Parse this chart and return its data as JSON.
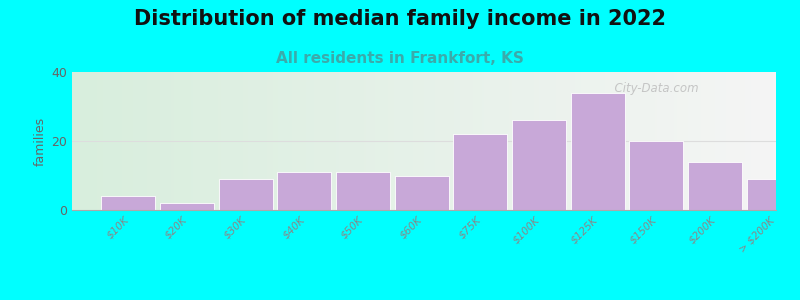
{
  "title": "Distribution of median family income in 2022",
  "subtitle": "All residents in Frankfort, KS",
  "ylabel": "families",
  "categories": [
    "$10K",
    "$20K",
    "$30K",
    "$40K",
    "$50K",
    "$60K",
    "$75K",
    "$100K",
    "$125K",
    "$150K",
    "$200K",
    "> $200K"
  ],
  "left_edges": [
    0,
    1,
    2,
    3,
    4,
    5,
    6,
    7,
    8,
    9,
    10,
    11
  ],
  "widths": [
    1,
    1,
    1,
    1,
    1,
    1,
    1,
    1,
    1,
    1,
    1,
    1
  ],
  "values": [
    4,
    2,
    9,
    11,
    11,
    10,
    22,
    26,
    34,
    20,
    14,
    9
  ],
  "bar_color": "#c8a8d8",
  "bar_edgecolor": "#ffffff",
  "background_color": "#00ffff",
  "ylim": [
    0,
    40
  ],
  "yticks": [
    0,
    20,
    40
  ],
  "title_fontsize": 15,
  "subtitle_fontsize": 11,
  "subtitle_color": "#3aabab",
  "ylabel_fontsize": 9,
  "watermark": "  City-Data.com",
  "watermark_color": "#c0c0c0",
  "gridline_color": "#dddddd",
  "tick_label_color": "#888888",
  "tick_label_size": 7.5
}
